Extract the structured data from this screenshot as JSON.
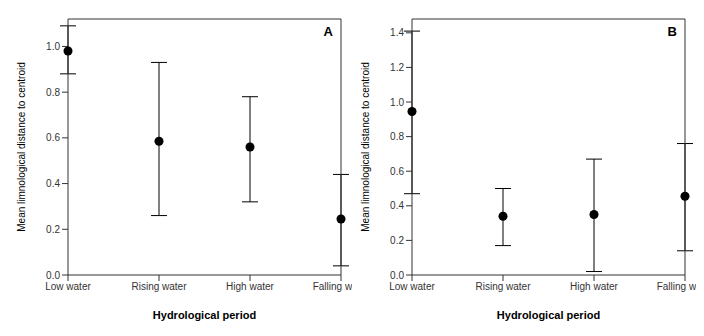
{
  "chart_data": [
    {
      "type": "scatter",
      "title": "A",
      "categories": [
        "Low water",
        "Rising water",
        "High water",
        "Falling water"
      ],
      "values": [
        0.98,
        0.585,
        0.56,
        0.245
      ],
      "err_upper": [
        0.11,
        0.345,
        0.22,
        0.195
      ],
      "err_lower": [
        0.1,
        0.325,
        0.24,
        0.205
      ],
      "color": "#000000",
      "marker": "circle",
      "xlabel": "Hydrological period",
      "ylabel": "Mean limnological distance to centroid",
      "ylim": [
        0.0,
        1.12
      ],
      "yticks": [
        {
          "value": 0,
          "label": "0.0"
        },
        0.2,
        0.4,
        0.6,
        0.8,
        {
          "value": 1,
          "label": "1.0"
        }
      ],
      "grid": false
    },
    {
      "type": "scatter",
      "title": "B",
      "categories": [
        "Low water",
        "Rising water",
        "High water",
        "Falling water"
      ],
      "values": [
        0.945,
        0.34,
        0.35,
        0.455
      ],
      "err_upper": [
        0.465,
        0.16,
        0.32,
        0.305
      ],
      "err_lower": [
        0.475,
        0.17,
        0.33,
        0.315
      ],
      "color": "#000000",
      "marker": "circle",
      "xlabel": "Hydrological period",
      "ylabel": "Mean limnological distance to centroid",
      "ylim": [
        0.0,
        1.48
      ],
      "yticks": [
        {
          "value": 0,
          "label": "0.0"
        },
        0.2,
        0.4,
        0.6,
        0.8,
        {
          "value": 1,
          "label": "1.0"
        },
        1.2,
        1.4
      ],
      "grid": false
    }
  ]
}
